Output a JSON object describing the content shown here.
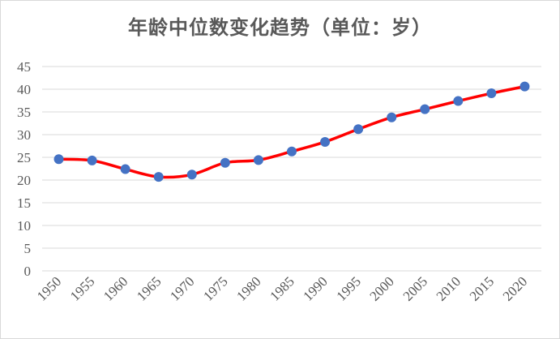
{
  "chart_data": {
    "type": "line",
    "title": "年龄中位数变化趋势（单位：岁）",
    "xlabel": "",
    "ylabel": "",
    "x": [
      "1950",
      "1955",
      "1960",
      "1965",
      "1970",
      "1975",
      "1980",
      "1985",
      "1990",
      "1995",
      "2000",
      "2005",
      "2010",
      "2015",
      "2020"
    ],
    "series": [
      {
        "values": [
          24.6,
          24.3,
          22.4,
          20.7,
          21.2,
          23.8,
          24.4,
          26.3,
          28.4,
          31.2,
          33.8,
          35.6,
          37.4,
          39.1,
          40.6
        ],
        "line_color": "#ff0000",
        "marker_color": "#4472c4"
      }
    ],
    "ylim": [
      0,
      45
    ],
    "yticks": [
      0,
      5,
      10,
      15,
      20,
      25,
      30,
      35,
      40,
      45
    ],
    "grid": true,
    "legend": "none",
    "smooth": true
  }
}
